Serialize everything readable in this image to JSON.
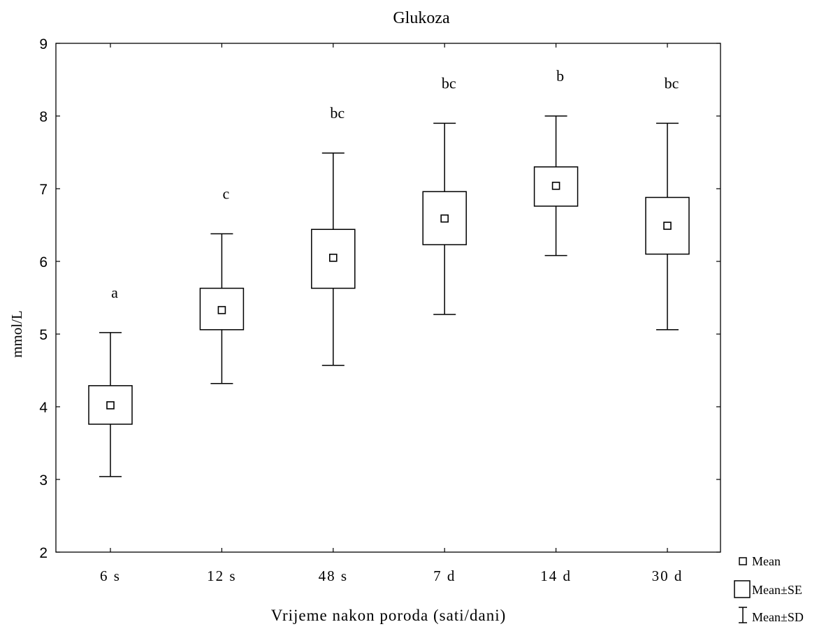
{
  "chart_data": {
    "type": "boxplot",
    "title": "Glukoza",
    "xlabel": "Vrijeme nakon poroda (sati/dani)",
    "ylabel": "mmol/L",
    "ylim": [
      2,
      9
    ],
    "yticks": [
      "2",
      "3",
      "4",
      "5",
      "6",
      "7",
      "8",
      "9"
    ],
    "grid": false,
    "legend_position": "bottom-right",
    "categories": [
      "6 s",
      "12 s",
      "48 s",
      "7 d",
      "14 d",
      "30 d"
    ],
    "groups": [
      {
        "category": "6 s",
        "mean": 4.02,
        "se_low": 3.76,
        "se_high": 4.29,
        "sd_low": 3.04,
        "sd_high": 5.02,
        "letter": "a"
      },
      {
        "category": "12 s",
        "mean": 5.33,
        "se_low": 5.06,
        "se_high": 5.63,
        "sd_low": 4.32,
        "sd_high": 6.38,
        "letter": "c"
      },
      {
        "category": "48 s",
        "mean": 6.05,
        "se_low": 5.63,
        "se_high": 6.44,
        "sd_low": 4.57,
        "sd_high": 7.49,
        "letter": "bc"
      },
      {
        "category": "7 d",
        "mean": 6.59,
        "se_low": 6.23,
        "se_high": 6.96,
        "sd_low": 5.27,
        "sd_high": 7.9,
        "letter": "bc"
      },
      {
        "category": "14 d",
        "mean": 7.04,
        "se_low": 6.76,
        "se_high": 7.3,
        "sd_low": 6.08,
        "sd_high": 8.0,
        "letter": "b"
      },
      {
        "category": "30 d",
        "mean": 6.49,
        "se_low": 6.1,
        "se_high": 6.88,
        "sd_low": 5.06,
        "sd_high": 7.9,
        "letter": "bc"
      }
    ],
    "legend": {
      "mean": "Mean",
      "se": "Mean±SE",
      "sd": "Mean±SD"
    }
  }
}
